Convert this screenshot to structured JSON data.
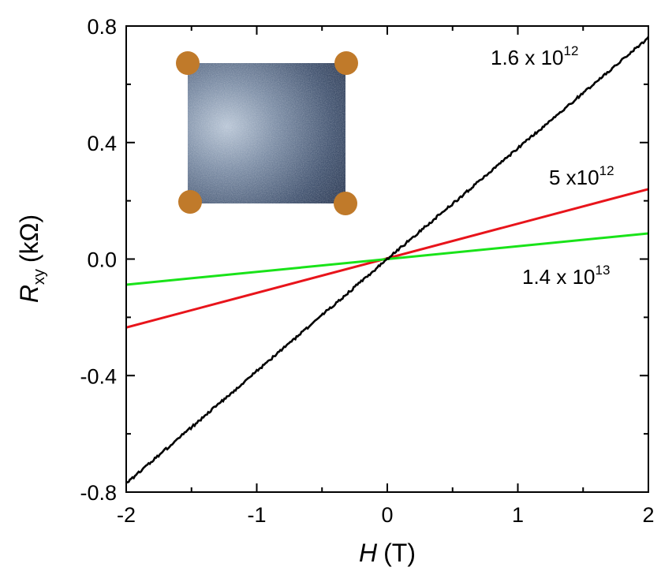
{
  "chart_data": {
    "type": "line",
    "xlabel": {
      "symbol": "H",
      "unit": "(T)"
    },
    "ylabel": {
      "symbol": "R",
      "subscript": "xy",
      "unit": "(kΩ)"
    },
    "xlim": [
      -2,
      2
    ],
    "ylim": [
      -0.8,
      0.8
    ],
    "x_ticks": [
      -2,
      -1,
      0,
      1,
      2
    ],
    "y_ticks": [
      -0.8,
      -0.4,
      0.0,
      0.4,
      0.8
    ],
    "x_tick_labels": [
      "-2",
      "-1",
      "0",
      "1",
      "2"
    ],
    "y_tick_labels": [
      "-0.8",
      "-0.4",
      "0.0",
      "0.4",
      "0.8"
    ],
    "grid": false,
    "series": [
      {
        "label_base": "1.6 x 10",
        "label_exp": "12",
        "color": "#000000",
        "noisy": true,
        "x": [
          -2,
          0,
          2
        ],
        "y": [
          -0.77,
          0.0,
          0.76
        ]
      },
      {
        "label_base": "5 x10",
        "label_exp": "12",
        "color": "#e8141b",
        "noisy": false,
        "x": [
          -2,
          2
        ],
        "y": [
          -0.235,
          0.24
        ]
      },
      {
        "label_base": "1.4 x 10",
        "label_exp": "13",
        "color": "#19e319",
        "noisy": false,
        "x": [
          -2,
          2
        ],
        "y": [
          -0.088,
          0.088
        ]
      }
    ],
    "inset": {
      "image": "sample-photo",
      "contact_color": "#c07a2a",
      "fill_color": "#4a5a73"
    }
  }
}
